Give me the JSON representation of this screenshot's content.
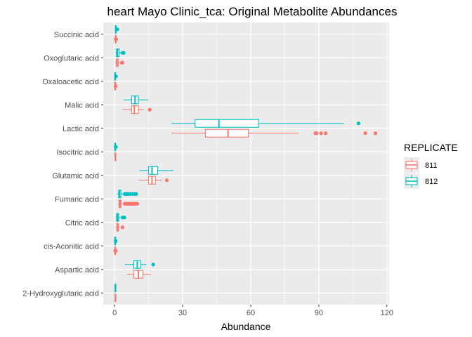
{
  "chart_data": {
    "type": "boxplot",
    "orientation": "horizontal",
    "title": "heart Mayo Clinic_tca: Original Metabolite Abundances",
    "xlabel": "Abundance",
    "ylabel": "",
    "xlim": [
      -5,
      121
    ],
    "x_ticks": [
      0,
      30,
      60,
      90,
      120
    ],
    "grid": true,
    "legend": {
      "title": "REPLICATE",
      "placement": "right",
      "entries": [
        {
          "key": "811",
          "label": "811",
          "color": "#F8766D"
        },
        {
          "key": "812",
          "label": "812",
          "color": "#00BFC4"
        }
      ]
    },
    "categories": [
      "2-Hydroxyglutaric acid",
      "Aspartic acid",
      "cis-Aconitic acid",
      "Citric acid",
      "Fumaric acid",
      "Glutamic acid",
      "Isocitric acid",
      "Lactic acid",
      "Malic acid",
      "Oxaloacetic acid",
      "Oxoglutaric acid",
      "Succinic acid"
    ],
    "series": [
      {
        "name": "811",
        "color": "#F8766D",
        "boxes": [
          {
            "min": 0.1,
            "q1": 0.2,
            "median": 0.3,
            "q3": 0.4,
            "max": 0.5,
            "outliers": []
          },
          {
            "min": 5.5,
            "q1": 8.5,
            "median": 10.5,
            "q3": 12.5,
            "max": 16,
            "outliers": []
          },
          {
            "min": 0,
            "q1": 0.1,
            "median": 0.2,
            "q3": 0.3,
            "max": 0.4,
            "outliers": [
              0.3,
              0.4,
              0.5
            ]
          },
          {
            "min": 0.5,
            "q1": 1.0,
            "median": 1.3,
            "q3": 1.7,
            "max": 2.3,
            "outliers": [
              3.5
            ]
          },
          {
            "min": 1.5,
            "q1": 2.0,
            "median": 2.4,
            "q3": 2.8,
            "max": 3.3,
            "outliers": [
              4.5,
              5,
              5.5,
              6,
              6.5,
              7,
              7.5,
              8,
              8.5,
              9,
              9.5,
              10
            ]
          },
          {
            "min": 10.5,
            "q1": 15,
            "median": 16.5,
            "q3": 18,
            "max": 21,
            "outliers": [
              23
            ]
          },
          {
            "min": 0.1,
            "q1": 0.2,
            "median": 0.3,
            "q3": 0.4,
            "max": 0.5,
            "outliers": []
          },
          {
            "min": 25,
            "q1": 40,
            "median": 50,
            "q3": 59,
            "max": 81,
            "outliers": [
              88.5,
              89,
              91,
              93,
              110.5,
              115
            ]
          },
          {
            "min": 3.5,
            "q1": 7.5,
            "median": 8.7,
            "q3": 10.5,
            "max": 13,
            "outliers": [
              15.5
            ]
          },
          {
            "min": 0,
            "q1": 0.1,
            "median": 0.2,
            "q3": 0.3,
            "max": 0.4,
            "outliers": [
              0.5
            ]
          },
          {
            "min": 0.3,
            "q1": 0.8,
            "median": 1.1,
            "q3": 1.6,
            "max": 2.3,
            "outliers": [
              3.2,
              3.5
            ]
          },
          {
            "min": 0.1,
            "q1": 0.3,
            "median": 0.4,
            "q3": 0.6,
            "max": 0.9,
            "outliers": [
              0.5,
              0.7
            ]
          }
        ]
      },
      {
        "name": "812",
        "color": "#00BFC4",
        "boxes": [
          {
            "min": 0.1,
            "q1": 0.2,
            "median": 0.3,
            "q3": 0.4,
            "max": 0.5,
            "outliers": []
          },
          {
            "min": 4.5,
            "q1": 8.5,
            "median": 10,
            "q3": 11.5,
            "max": 14,
            "outliers": [
              17
            ]
          },
          {
            "min": 0,
            "q1": 0.1,
            "median": 0.2,
            "q3": 0.3,
            "max": 0.4,
            "outliers": [
              0.5
            ]
          },
          {
            "min": 0.5,
            "q1": 0.9,
            "median": 1.3,
            "q3": 1.8,
            "max": 2.5,
            "outliers": [
              3.5,
              4.3
            ]
          },
          {
            "min": 1.0,
            "q1": 1.8,
            "median": 2.2,
            "q3": 2.8,
            "max": 3.8,
            "outliers": [
              4.5,
              5,
              5.5,
              6,
              7,
              8,
              9,
              9.5
            ]
          },
          {
            "min": 11,
            "q1": 15,
            "median": 16.5,
            "q3": 19,
            "max": 26,
            "outliers": []
          },
          {
            "min": 0,
            "q1": 0.1,
            "median": 0.2,
            "q3": 0.3,
            "max": 0.4,
            "outliers": [
              0.5,
              0.6
            ]
          },
          {
            "min": 25,
            "q1": 35.5,
            "median": 46,
            "q3": 63.5,
            "max": 101,
            "outliers": [
              107.5
            ]
          },
          {
            "min": 4,
            "q1": 7.5,
            "median": 9,
            "q3": 10.5,
            "max": 15,
            "outliers": []
          },
          {
            "min": 0,
            "q1": 0.1,
            "median": 0.2,
            "q3": 0.3,
            "max": 0.4,
            "outliers": [
              0.6
            ]
          },
          {
            "min": 0.3,
            "q1": 0.8,
            "median": 1.3,
            "q3": 2.0,
            "max": 3.0,
            "outliers": [
              3.5,
              4.0
            ]
          },
          {
            "min": 0.1,
            "q1": 0.3,
            "median": 0.5,
            "q3": 0.7,
            "max": 1.0,
            "outliers": [
              1.2
            ]
          }
        ]
      }
    ]
  }
}
